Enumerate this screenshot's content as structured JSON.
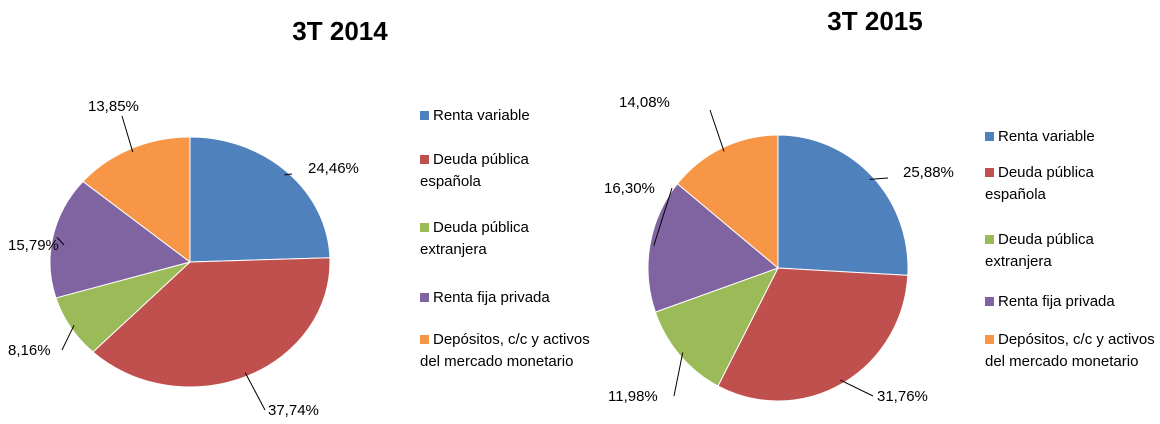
{
  "chart_data": [
    {
      "type": "pie",
      "title": "3T  2014",
      "categories": [
        "Renta variable",
        "Deuda pública española",
        "Deuda pública extranjera",
        "Renta fija privada",
        "Depósitos, c/c y activos del mercado monetario"
      ],
      "values": [
        24.46,
        37.74,
        8.16,
        15.79,
        13.85
      ],
      "value_labels": [
        "24,46%",
        "37,74%",
        "8,16%",
        "15,79%",
        "13,85%"
      ],
      "colors": [
        "#4f81bd",
        "#c0504d",
        "#9bbb59",
        "#8064a2",
        "#f79646"
      ]
    },
    {
      "type": "pie",
      "title": "3T 2015",
      "categories": [
        "Renta variable",
        "Deuda pública española",
        "Deuda pública extranjera",
        "Renta fija privada",
        "Depósitos, c/c y activos del mercado monetario"
      ],
      "values": [
        25.88,
        31.76,
        11.98,
        16.3,
        14.08
      ],
      "value_labels": [
        "25,88%",
        "31,76%",
        "11,98%",
        "16,30%",
        "14,08%"
      ],
      "colors": [
        "#4f81bd",
        "#c0504d",
        "#9bbb59",
        "#8064a2",
        "#f79646"
      ]
    }
  ]
}
